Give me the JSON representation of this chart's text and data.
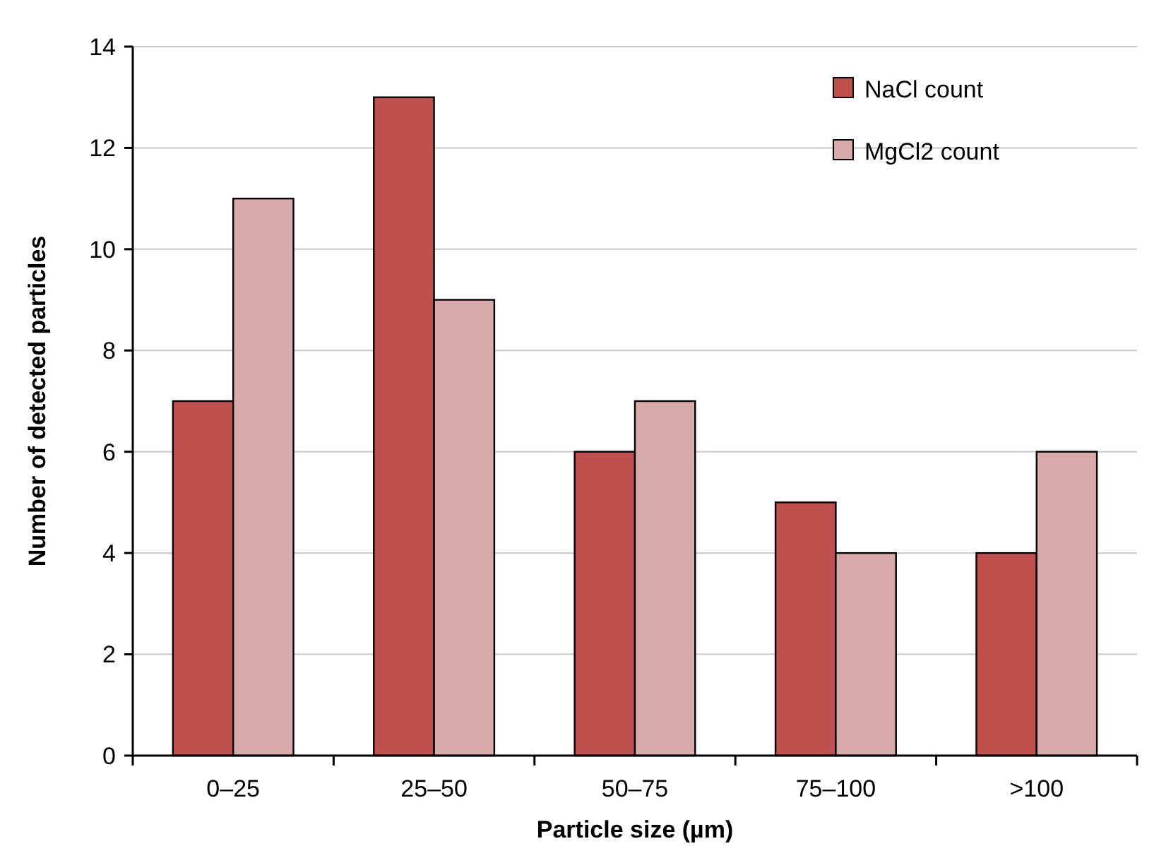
{
  "chart_data": {
    "type": "bar",
    "xlabel": "Particle size (µm)",
    "ylabel": "Number of detected particles",
    "categories": [
      "0–25",
      "25–50",
      "50–75",
      "75–100",
      ">100"
    ],
    "series": [
      {
        "name": "NaCl count",
        "color": "#c0504d",
        "values": [
          7,
          13,
          6,
          5,
          4
        ]
      },
      {
        "name": "MgCl2 count",
        "color": "#d9aaaa",
        "values": [
          11,
          9,
          7,
          4,
          6
        ]
      }
    ],
    "ylim": [
      0,
      14
    ],
    "yticks": [
      0,
      2,
      4,
      6,
      8,
      10,
      12,
      14
    ],
    "grid": "y",
    "legend": "top right"
  }
}
